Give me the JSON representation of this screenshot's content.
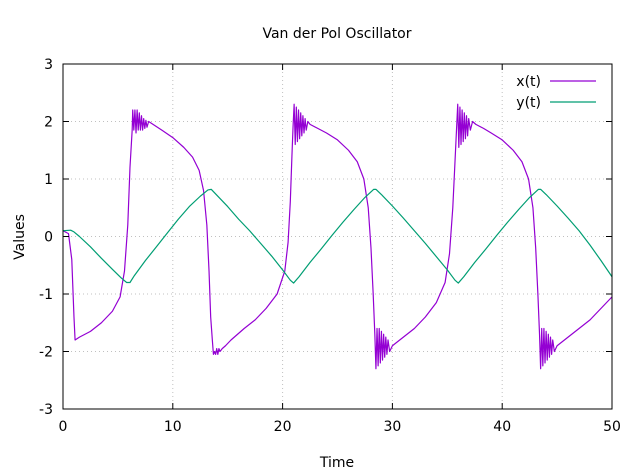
{
  "chart_data": {
    "type": "line",
    "title": "Van der Pol Oscillator",
    "xlabel": "Time",
    "ylabel": "Values",
    "xlim": [
      0,
      50
    ],
    "ylim": [
      -3,
      3
    ],
    "xticks": [
      "0",
      "10",
      "20",
      "30",
      "40",
      "50"
    ],
    "yticks": [
      "3",
      "2",
      "1",
      "0",
      "-1",
      "-2",
      "-3"
    ],
    "grid": true,
    "legend_position": "top-right",
    "series": [
      {
        "name": "x(t)",
        "color": "#9400d3",
        "points": [
          [
            0,
            0.1
          ],
          [
            0.5,
            0.05
          ],
          [
            0.8,
            -0.4
          ],
          [
            1.0,
            -1.4
          ],
          [
            1.1,
            -1.8
          ],
          [
            1.5,
            -1.75
          ],
          [
            2.5,
            -1.65
          ],
          [
            3.5,
            -1.5
          ],
          [
            4.5,
            -1.3
          ],
          [
            5.2,
            -1.05
          ],
          [
            5.6,
            -0.6
          ],
          [
            5.9,
            0.2
          ],
          [
            6.1,
            1.2
          ],
          [
            6.3,
            1.85
          ],
          [
            6.35,
            2.2
          ],
          [
            6.45,
            1.85
          ],
          [
            6.55,
            2.2
          ],
          [
            6.65,
            1.8
          ],
          [
            6.75,
            2.2
          ],
          [
            6.85,
            1.85
          ],
          [
            6.95,
            2.15
          ],
          [
            7.05,
            1.85
          ],
          [
            7.15,
            2.1
          ],
          [
            7.25,
            1.85
          ],
          [
            7.35,
            2.05
          ],
          [
            7.45,
            1.88
          ],
          [
            7.55,
            2.02
          ],
          [
            7.65,
            1.9
          ],
          [
            7.8,
            2.0
          ],
          [
            8.2,
            1.95
          ],
          [
            9.0,
            1.85
          ],
          [
            10.0,
            1.72
          ],
          [
            11.0,
            1.55
          ],
          [
            11.8,
            1.38
          ],
          [
            12.4,
            1.15
          ],
          [
            12.8,
            0.8
          ],
          [
            13.1,
            0.2
          ],
          [
            13.3,
            -0.6
          ],
          [
            13.45,
            -1.4
          ],
          [
            13.6,
            -1.8
          ],
          [
            13.7,
            -2.05
          ],
          [
            13.8,
            -2.0
          ],
          [
            13.9,
            -2.05
          ],
          [
            14.0,
            -1.95
          ],
          [
            14.1,
            -2.05
          ],
          [
            14.2,
            -1.95
          ],
          [
            14.3,
            -2.0
          ],
          [
            14.5,
            -1.95
          ],
          [
            14.8,
            -1.9
          ],
          [
            15.3,
            -1.8
          ],
          [
            16.5,
            -1.6
          ],
          [
            17.5,
            -1.45
          ],
          [
            18.5,
            -1.25
          ],
          [
            19.5,
            -1.0
          ],
          [
            20.2,
            -0.6
          ],
          [
            20.5,
            -0.1
          ],
          [
            20.7,
            0.6
          ],
          [
            20.85,
            1.4
          ],
          [
            20.95,
            1.9
          ],
          [
            21.05,
            2.3
          ],
          [
            21.15,
            1.6
          ],
          [
            21.25,
            2.25
          ],
          [
            21.35,
            1.65
          ],
          [
            21.45,
            2.2
          ],
          [
            21.55,
            1.7
          ],
          [
            21.65,
            2.15
          ],
          [
            21.75,
            1.75
          ],
          [
            21.85,
            2.1
          ],
          [
            21.95,
            1.8
          ],
          [
            22.05,
            2.05
          ],
          [
            22.15,
            1.85
          ],
          [
            22.3,
            2.0
          ],
          [
            22.5,
            1.95
          ],
          [
            23.2,
            1.88
          ],
          [
            24.0,
            1.8
          ],
          [
            25.0,
            1.68
          ],
          [
            26.0,
            1.5
          ],
          [
            26.8,
            1.3
          ],
          [
            27.4,
            1.0
          ],
          [
            27.8,
            0.5
          ],
          [
            28.05,
            -0.2
          ],
          [
            28.25,
            -1.0
          ],
          [
            28.4,
            -1.7
          ],
          [
            28.5,
            -2.3
          ],
          [
            28.6,
            -1.6
          ],
          [
            28.7,
            -2.25
          ],
          [
            28.8,
            -1.6
          ],
          [
            28.9,
            -2.2
          ],
          [
            29.0,
            -1.65
          ],
          [
            29.1,
            -2.15
          ],
          [
            29.2,
            -1.7
          ],
          [
            29.3,
            -2.1
          ],
          [
            29.4,
            -1.75
          ],
          [
            29.5,
            -2.05
          ],
          [
            29.6,
            -1.8
          ],
          [
            29.75,
            -2.0
          ],
          [
            30.0,
            -1.9
          ],
          [
            31.0,
            -1.75
          ],
          [
            32.0,
            -1.6
          ],
          [
            33.0,
            -1.4
          ],
          [
            34.0,
            -1.15
          ],
          [
            34.8,
            -0.8
          ],
          [
            35.2,
            -0.3
          ],
          [
            35.5,
            0.5
          ],
          [
            35.7,
            1.3
          ],
          [
            35.85,
            1.9
          ],
          [
            35.95,
            2.3
          ],
          [
            36.05,
            1.55
          ],
          [
            36.15,
            2.25
          ],
          [
            36.25,
            1.6
          ],
          [
            36.35,
            2.2
          ],
          [
            36.45,
            1.65
          ],
          [
            36.55,
            2.15
          ],
          [
            36.65,
            1.7
          ],
          [
            36.75,
            2.1
          ],
          [
            36.85,
            1.75
          ],
          [
            36.95,
            2.05
          ],
          [
            37.1,
            1.85
          ],
          [
            37.3,
            2.0
          ],
          [
            37.6,
            1.95
          ],
          [
            38.3,
            1.88
          ],
          [
            39.0,
            1.8
          ],
          [
            40.0,
            1.68
          ],
          [
            41.0,
            1.5
          ],
          [
            41.8,
            1.3
          ],
          [
            42.4,
            1.0
          ],
          [
            42.8,
            0.5
          ],
          [
            43.05,
            -0.2
          ],
          [
            43.25,
            -1.0
          ],
          [
            43.4,
            -1.7
          ],
          [
            43.5,
            -2.3
          ],
          [
            43.6,
            -1.6
          ],
          [
            43.7,
            -2.25
          ],
          [
            43.8,
            -1.6
          ],
          [
            43.9,
            -2.2
          ],
          [
            44.0,
            -1.65
          ],
          [
            44.1,
            -2.15
          ],
          [
            44.2,
            -1.7
          ],
          [
            44.3,
            -2.1
          ],
          [
            44.4,
            -1.75
          ],
          [
            44.5,
            -2.05
          ],
          [
            44.6,
            -1.8
          ],
          [
            44.75,
            -2.0
          ],
          [
            45.0,
            -1.9
          ],
          [
            46.0,
            -1.75
          ],
          [
            47.0,
            -1.6
          ],
          [
            48.0,
            -1.45
          ],
          [
            49.0,
            -1.25
          ],
          [
            50.0,
            -1.05
          ]
        ]
      },
      {
        "name": "y(t)",
        "color": "#009e73",
        "points": [
          [
            0,
            0.1
          ],
          [
            0.7,
            0.11
          ],
          [
            1.0,
            0.08
          ],
          [
            1.5,
            0.0
          ],
          [
            2.5,
            -0.18
          ],
          [
            3.5,
            -0.38
          ],
          [
            4.5,
            -0.57
          ],
          [
            5.3,
            -0.72
          ],
          [
            5.8,
            -0.8
          ],
          [
            6.1,
            -0.8
          ],
          [
            6.5,
            -0.68
          ],
          [
            7.5,
            -0.42
          ],
          [
            8.5,
            -0.18
          ],
          [
            9.5,
            0.06
          ],
          [
            10.5,
            0.3
          ],
          [
            11.5,
            0.52
          ],
          [
            12.5,
            0.7
          ],
          [
            13.2,
            0.81
          ],
          [
            13.5,
            0.82
          ],
          [
            14.0,
            0.72
          ],
          [
            15.0,
            0.52
          ],
          [
            16.0,
            0.3
          ],
          [
            17.0,
            0.1
          ],
          [
            18.0,
            -0.12
          ],
          [
            19.0,
            -0.34
          ],
          [
            20.0,
            -0.58
          ],
          [
            20.7,
            -0.76
          ],
          [
            21.0,
            -0.81
          ],
          [
            21.5,
            -0.7
          ],
          [
            22.5,
            -0.45
          ],
          [
            23.5,
            -0.22
          ],
          [
            24.5,
            0.02
          ],
          [
            25.5,
            0.25
          ],
          [
            26.5,
            0.47
          ],
          [
            27.5,
            0.68
          ],
          [
            28.3,
            0.82
          ],
          [
            28.5,
            0.82
          ],
          [
            29.0,
            0.73
          ],
          [
            30.0,
            0.53
          ],
          [
            31.0,
            0.32
          ],
          [
            32.0,
            0.1
          ],
          [
            33.0,
            -0.12
          ],
          [
            34.0,
            -0.35
          ],
          [
            35.0,
            -0.58
          ],
          [
            35.7,
            -0.76
          ],
          [
            36.0,
            -0.81
          ],
          [
            36.5,
            -0.7
          ],
          [
            37.5,
            -0.45
          ],
          [
            38.5,
            -0.22
          ],
          [
            39.5,
            0.02
          ],
          [
            40.5,
            0.25
          ],
          [
            41.5,
            0.47
          ],
          [
            42.5,
            0.68
          ],
          [
            43.3,
            0.82
          ],
          [
            43.5,
            0.82
          ],
          [
            44.0,
            0.73
          ],
          [
            45.0,
            0.53
          ],
          [
            46.0,
            0.32
          ],
          [
            47.0,
            0.1
          ],
          [
            48.0,
            -0.15
          ],
          [
            49.0,
            -0.42
          ],
          [
            50.0,
            -0.7
          ]
        ]
      }
    ]
  }
}
